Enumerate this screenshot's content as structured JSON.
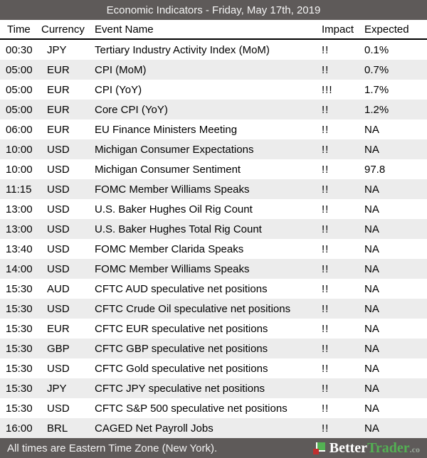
{
  "title": "Economic Indicators - Friday, May 17th, 2019",
  "columns": [
    "Time",
    "Currency",
    "Event Name",
    "Impact",
    "Expected"
  ],
  "rows": [
    {
      "time": "00:30",
      "currency": "JPY",
      "event": "Tertiary Industry Activity Index (MoM)",
      "impact": "!!",
      "expected": "0.1%"
    },
    {
      "time": "05:00",
      "currency": "EUR",
      "event": "CPI (MoM)",
      "impact": "!!",
      "expected": "0.7%"
    },
    {
      "time": "05:00",
      "currency": "EUR",
      "event": "CPI (YoY)",
      "impact": "!!!",
      "expected": "1.7%"
    },
    {
      "time": "05:00",
      "currency": "EUR",
      "event": "Core CPI (YoY)",
      "impact": "!!",
      "expected": "1.2%"
    },
    {
      "time": "06:00",
      "currency": "EUR",
      "event": "EU Finance Ministers Meeting",
      "impact": "!!",
      "expected": "NA"
    },
    {
      "time": "10:00",
      "currency": "USD",
      "event": "Michigan Consumer Expectations",
      "impact": "!!",
      "expected": "NA"
    },
    {
      "time": "10:00",
      "currency": "USD",
      "event": "Michigan Consumer Sentiment",
      "impact": "!!",
      "expected": "97.8"
    },
    {
      "time": "11:15",
      "currency": "USD",
      "event": "FOMC Member Williams Speaks",
      "impact": "!!",
      "expected": "NA"
    },
    {
      "time": "13:00",
      "currency": "USD",
      "event": "U.S. Baker Hughes Oil Rig Count",
      "impact": "!!",
      "expected": "NA"
    },
    {
      "time": "13:00",
      "currency": "USD",
      "event": "U.S. Baker Hughes Total Rig Count",
      "impact": "!!",
      "expected": "NA"
    },
    {
      "time": "13:40",
      "currency": "USD",
      "event": "FOMC Member Clarida Speaks",
      "impact": "!!",
      "expected": "NA"
    },
    {
      "time": "14:00",
      "currency": "USD",
      "event": "FOMC Member Williams Speaks",
      "impact": "!!",
      "expected": "NA"
    },
    {
      "time": "15:30",
      "currency": "AUD",
      "event": "CFTC AUD speculative net positions",
      "impact": "!!",
      "expected": "NA"
    },
    {
      "time": "15:30",
      "currency": "USD",
      "event": "CFTC Crude Oil speculative net positions",
      "impact": "!!",
      "expected": "NA"
    },
    {
      "time": "15:30",
      "currency": "EUR",
      "event": "CFTC EUR speculative net positions",
      "impact": "!!",
      "expected": "NA"
    },
    {
      "time": "15:30",
      "currency": "GBP",
      "event": "CFTC GBP speculative net positions",
      "impact": "!!",
      "expected": "NA"
    },
    {
      "time": "15:30",
      "currency": "USD",
      "event": "CFTC Gold speculative net positions",
      "impact": "!!",
      "expected": "NA"
    },
    {
      "time": "15:30",
      "currency": "JPY",
      "event": "CFTC JPY speculative net positions",
      "impact": "!!",
      "expected": "NA"
    },
    {
      "time": "15:30",
      "currency": "USD",
      "event": "CFTC S&P 500 speculative net positions",
      "impact": "!!",
      "expected": "NA"
    },
    {
      "time": "16:00",
      "currency": "BRL",
      "event": "CAGED Net Payroll Jobs",
      "impact": "!!",
      "expected": "NA"
    }
  ],
  "footer": {
    "note": "All times are Eastern Time Zone (New York).",
    "brand_better": "Better",
    "brand_trader": "Trader",
    "brand_tld": ".co"
  },
  "colors": {
    "bar_background": "#5e5a59",
    "row_alternate": "#ececec",
    "brand_green": "#53b153",
    "brand_red": "#c02f2f"
  }
}
